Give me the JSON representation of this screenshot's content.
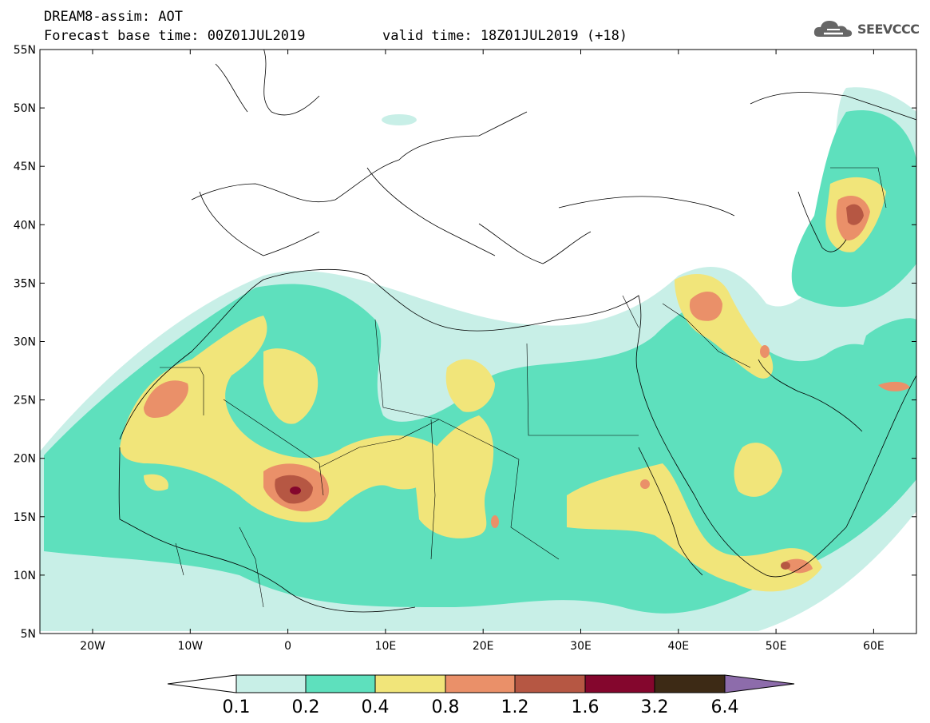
{
  "header": {
    "line1": "DREAM8-assim: AOT",
    "line2": "Forecast base time: 00Z01JUL2019",
    "valid": "valid time: 18Z01JUL2019 (+18)"
  },
  "logo": {
    "text": "SEEVCCC",
    "icon": "cloud-icon"
  },
  "map": {
    "lat_labels": [
      "55N",
      "50N",
      "45N",
      "40N",
      "35N",
      "30N",
      "25N",
      "20N",
      "15N",
      "10N",
      "5N"
    ],
    "lon_labels": [
      "20W",
      "10W",
      "0",
      "10E",
      "20E",
      "30E",
      "40E",
      "50E",
      "60E"
    ]
  },
  "colorbar": {
    "labels": [
      "0.1",
      "0.2",
      "0.4",
      "0.8",
      "1.2",
      "1.6",
      "3.2",
      "6.4"
    ],
    "colors": {
      "below": "#ffffff",
      "c1": "#c8efe7",
      "c2": "#5ee0bd",
      "c3": "#f1e57a",
      "c4": "#ea9069",
      "c5": "#b65743",
      "c6": "#84062d",
      "c7": "#3d2a15",
      "above": "#8d6cab"
    }
  }
}
